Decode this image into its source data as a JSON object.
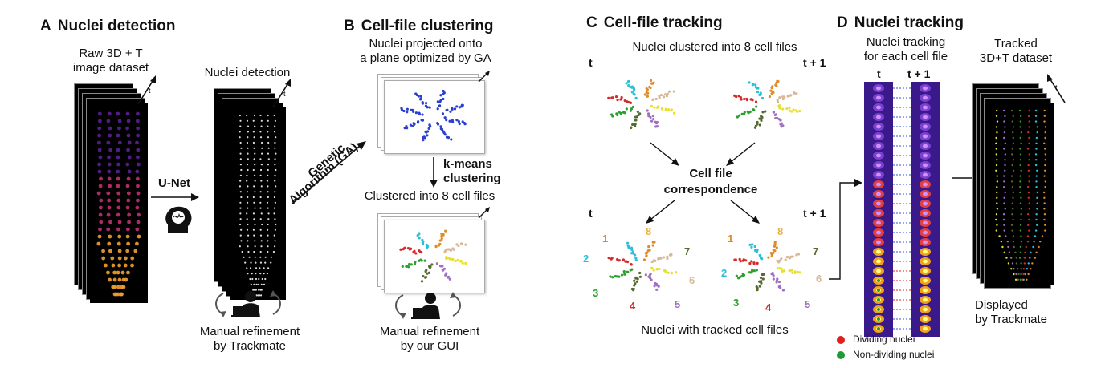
{
  "panels": {
    "a": {
      "letter": "A",
      "title": "Nuclei detection",
      "raw_label_1": "Raw 3D + T",
      "raw_label_2": "image dataset",
      "detect_label": "Nuclei detection",
      "unet": "U-Net",
      "refine_1": "Manual refinement",
      "refine_2": "by Trackmate"
    },
    "b": {
      "letter": "B",
      "title": "Cell-file clustering",
      "proj_1": "Nuclei projected onto",
      "proj_2": "a plane optimized by GA",
      "ga_1": "Genetic",
      "ga_2": "Algorithm (GA)",
      "kmeans_1": "k-means",
      "kmeans_2": "clustering",
      "clustered": "Clustered into 8 cell files",
      "refine_1": "Manual refinement",
      "refine_2": "by our GUI"
    },
    "c": {
      "letter": "C",
      "title": "Cell-file tracking",
      "top_label": "Nuclei clustered into 8 cell files",
      "t": "t",
      "t1": "t + 1",
      "corr_1": "Cell file",
      "corr_2": "correspondence",
      "bottom_label": "Nuclei with tracked cell files",
      "numbers": [
        "1",
        "2",
        "3",
        "4",
        "5",
        "6",
        "7",
        "8"
      ]
    },
    "d": {
      "letter": "D",
      "title": "Nuclei tracking",
      "track_1": "Nuclei tracking",
      "track_2": "for each cell file",
      "t": "t",
      "t1": "t + 1",
      "tracked_1": "Tracked",
      "tracked_2": "3D+T dataset",
      "disp_1": "Displayed",
      "disp_2": "by Trackmate",
      "legend": [
        {
          "label": "Dividing nuclei",
          "color": "#e02020"
        },
        {
          "label": "Non-dividing nuclei",
          "color": "#1e9a3a"
        }
      ]
    }
  },
  "cluster_colors": [
    "#e8e030",
    "#a070c0",
    "#556b2f",
    "#2e9e2e",
    "#d62828",
    "#2ac0d8",
    "#e08a2a",
    "#d8b898"
  ],
  "icons": [
    "time-arrow-icon",
    "brain-icon",
    "person-laptop-icon",
    "refresh-arrows-icon"
  ]
}
